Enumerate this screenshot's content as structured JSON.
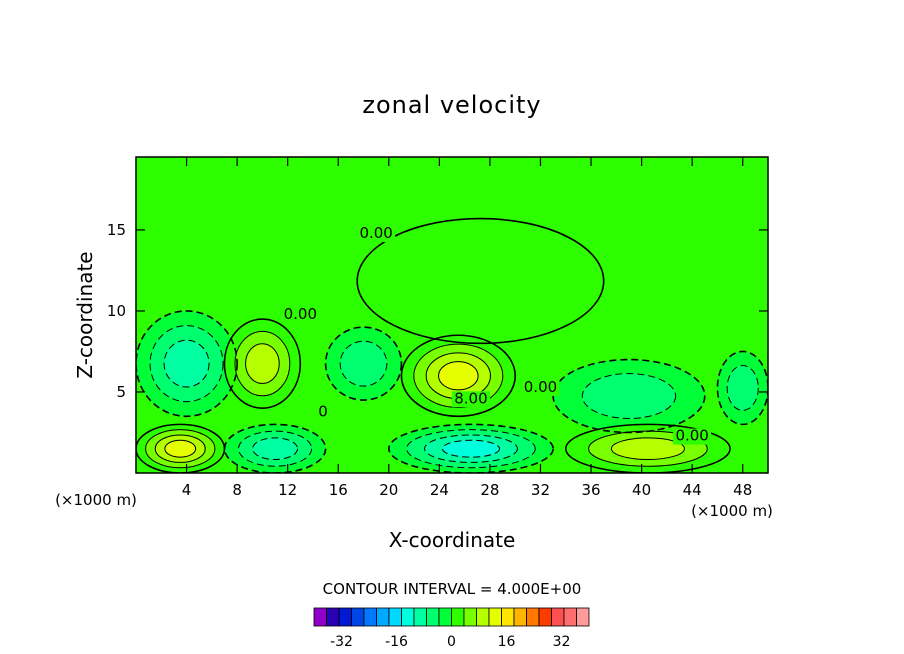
{
  "chart_data": {
    "type": "heatmap",
    "title": "zonal velocity",
    "xlabel": "X-coordinate",
    "ylabel": "Z-coordinate",
    "x_unit_left": "(×1000 m)",
    "x_unit_right": "(×1000 m)",
    "xlim": [
      0,
      50
    ],
    "ylim": [
      0,
      19.5
    ],
    "x_ticks": [
      4,
      8,
      12,
      16,
      20,
      24,
      28,
      32,
      36,
      40,
      44,
      48
    ],
    "y_ticks": [
      5,
      10,
      15
    ],
    "contour_interval_text": "CONTOUR INTERVAL = 4.000E+00",
    "contour_labels": [
      "0.00",
      "0.00",
      "0",
      "8.00",
      "0.00",
      "0.00"
    ],
    "background_value": 0,
    "colorbar": {
      "tick_labels": [
        "-32",
        "-16",
        "0",
        "16",
        "32"
      ],
      "tick_values": [
        -32,
        -16,
        0,
        16,
        32
      ],
      "range": [
        -40,
        40
      ],
      "colors": [
        "#8f00c8",
        "#2a00b4",
        "#0019d2",
        "#0046e6",
        "#0078ff",
        "#00a8ff",
        "#00d8ff",
        "#00ffdc",
        "#00ffa0",
        "#00ff6e",
        "#00ff37",
        "#2dff00",
        "#78ff00",
        "#b4ff00",
        "#e6ff00",
        "#ffe600",
        "#ffb400",
        "#ff7800",
        "#ff3c00",
        "#ff5050",
        "#ff6e6e",
        "#ff9a9a"
      ]
    },
    "features": [
      {
        "kind": "positive_jet",
        "x": [
          17.5,
          37
        ],
        "z": [
          8,
          15.7
        ],
        "level": 4
      },
      {
        "kind": "negative_cell",
        "x": [
          0,
          8
        ],
        "z": [
          3.5,
          10
        ],
        "level": -12
      },
      {
        "kind": "positive_cell",
        "x": [
          7,
          13
        ],
        "z": [
          4,
          9.5
        ],
        "level": 12
      },
      {
        "kind": "negative_cell",
        "x": [
          15,
          21
        ],
        "z": [
          4.5,
          9
        ],
        "level": -8
      },
      {
        "kind": "positive_cell",
        "x": [
          21,
          30
        ],
        "z": [
          3.5,
          8.5
        ],
        "level": 16
      },
      {
        "kind": "negative_cell",
        "x": [
          33,
          45
        ],
        "z": [
          2.5,
          7
        ],
        "level": -8
      },
      {
        "kind": "negative_cell",
        "x": [
          46,
          50
        ],
        "z": [
          3,
          7.5
        ],
        "level": -8
      },
      {
        "kind": "positive_cell",
        "x": [
          0,
          7
        ],
        "z": [
          0,
          3
        ],
        "level": 16
      },
      {
        "kind": "negative_cell",
        "x": [
          7,
          15
        ],
        "z": [
          0,
          3
        ],
        "level": -12
      },
      {
        "kind": "negative_cell",
        "x": [
          20,
          33
        ],
        "z": [
          0,
          3
        ],
        "level": -16
      },
      {
        "kind": "positive_cell",
        "x": [
          34,
          47
        ],
        "z": [
          0,
          3
        ],
        "level": 12
      }
    ]
  }
}
